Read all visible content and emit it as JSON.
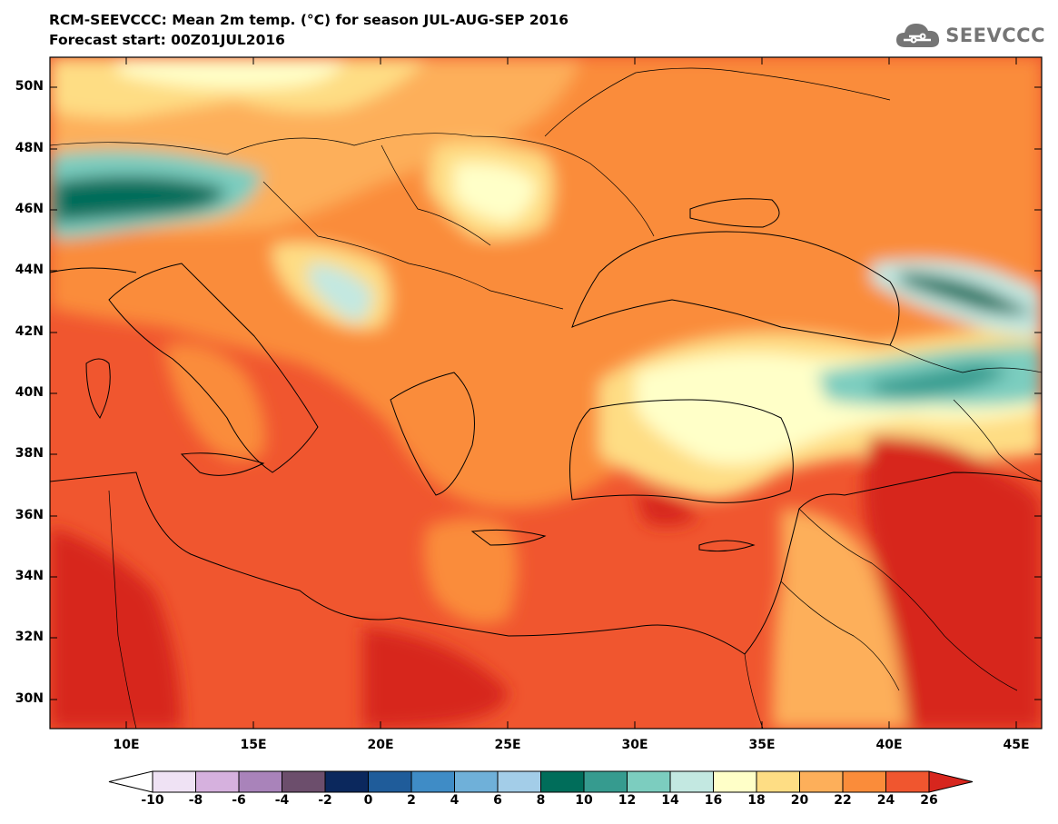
{
  "title": {
    "line1": "RCM-SEEVCCC: Mean 2m temp. (°C) for season JUL-AUG-SEP 2016",
    "line2": "Forecast start: 00Z01JUL2016"
  },
  "logo": {
    "text": "SEEVCCC",
    "icon": "cloud-icon",
    "color": "#757575"
  },
  "map": {
    "lon_range": [
      7,
      46
    ],
    "lat_range": [
      29,
      51
    ],
    "lat_ticks": [
      "50N",
      "48N",
      "46N",
      "44N",
      "42N",
      "40N",
      "38N",
      "36N",
      "34N",
      "32N",
      "30N"
    ],
    "lon_ticks": [
      "10E",
      "15E",
      "20E",
      "25E",
      "30E",
      "35E",
      "40E",
      "45E"
    ],
    "background_color": "#f0562f",
    "notes_features": "coastlines and country borders of the Mediterranean / Black Sea region"
  },
  "colorbar": {
    "labels": [
      "-10",
      "-8",
      "-6",
      "-4",
      "-2",
      "0",
      "2",
      "4",
      "6",
      "8",
      "10",
      "12",
      "14",
      "16",
      "18",
      "20",
      "22",
      "24",
      "26"
    ],
    "colors": [
      "#ffffff",
      "#efe2f4",
      "#d6b1de",
      "#a983ba",
      "#6c4e6c",
      "#0b285d",
      "#1f5c9a",
      "#3f8cc6",
      "#6fb0d9",
      "#a3cde8",
      "#006d5a",
      "#369b8f",
      "#7ccdbf",
      "#c3e8e1",
      "#ffffc8",
      "#fedd84",
      "#fdaf5a",
      "#fa8c3a",
      "#f0562f",
      "#d7261e"
    ]
  }
}
